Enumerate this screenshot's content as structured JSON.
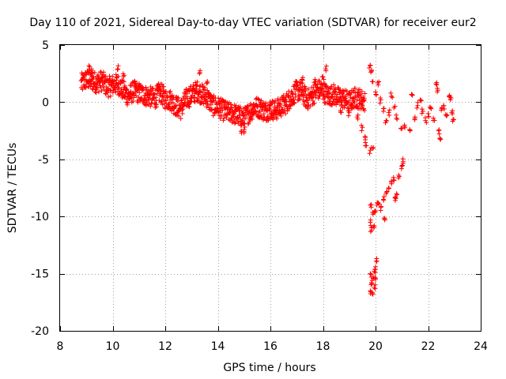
{
  "chart_data": {
    "type": "scatter",
    "title": "Day 110 of 2021, Sidereal Day-to-day VTEC variation (SDTVAR) for receiver eur2",
    "xlabel": "GPS time / hours",
    "ylabel": "SDTVAR / TECUs",
    "xlim": [
      8,
      24
    ],
    "ylim": [
      -20,
      5
    ],
    "xticks": [
      8,
      10,
      12,
      14,
      16,
      18,
      20,
      22,
      24
    ],
    "yticks": [
      5,
      0,
      -5,
      -10,
      -15,
      -20
    ],
    "grid": true,
    "marker": "+",
    "color": "#ff0000",
    "series": [
      {
        "name": "SDTVAR",
        "trend": [
          [
            8.8,
            1.6
          ],
          [
            9.0,
            2.0
          ],
          [
            9.2,
            1.9
          ],
          [
            9.4,
            1.7
          ],
          [
            9.6,
            1.9
          ],
          [
            9.8,
            1.3
          ],
          [
            10.0,
            1.5
          ],
          [
            10.2,
            1.6
          ],
          [
            10.4,
            1.0
          ],
          [
            10.6,
            0.5
          ],
          [
            10.8,
            1.0
          ],
          [
            11.0,
            0.8
          ],
          [
            11.2,
            0.6
          ],
          [
            11.4,
            0.5
          ],
          [
            11.6,
            0.3
          ],
          [
            11.8,
            0.9
          ],
          [
            12.0,
            0.3
          ],
          [
            12.2,
            0.2
          ],
          [
            12.4,
            -0.3
          ],
          [
            12.6,
            -0.6
          ],
          [
            12.8,
            0.3
          ],
          [
            13.0,
            0.6
          ],
          [
            13.2,
            1.0
          ],
          [
            13.4,
            0.7
          ],
          [
            13.6,
            0.4
          ],
          [
            13.8,
            -0.3
          ],
          [
            14.0,
            -0.4
          ],
          [
            14.2,
            -0.7
          ],
          [
            14.4,
            -0.9
          ],
          [
            14.6,
            -1.0
          ],
          [
            14.8,
            -1.2
          ],
          [
            15.0,
            -1.4
          ],
          [
            15.2,
            -0.9
          ],
          [
            15.4,
            -0.4
          ],
          [
            15.6,
            -0.5
          ],
          [
            15.8,
            -0.8
          ],
          [
            16.0,
            -0.6
          ],
          [
            16.2,
            -0.7
          ],
          [
            16.4,
            -0.4
          ],
          [
            16.6,
            -0.1
          ],
          [
            16.8,
            0.5
          ],
          [
            17.0,
            1.0
          ],
          [
            17.2,
            0.9
          ],
          [
            17.4,
            0.2
          ],
          [
            17.6,
            0.6
          ],
          [
            17.8,
            1.1
          ],
          [
            18.0,
            1.0
          ],
          [
            18.2,
            0.5
          ],
          [
            18.4,
            0.7
          ],
          [
            18.6,
            0.4
          ],
          [
            18.8,
            0.3
          ],
          [
            19.0,
            0.0
          ],
          [
            19.2,
            0.4
          ],
          [
            19.4,
            0.3
          ],
          [
            19.6,
            0.0
          ]
        ],
        "jitter": 0.9,
        "points": [
          [
            9.1,
            3.2
          ],
          [
            9.2,
            2.9
          ],
          [
            10.2,
            2.9
          ],
          [
            10.4,
            2.5
          ],
          [
            13.3,
            2.5
          ],
          [
            13.6,
            1.7
          ],
          [
            14.9,
            -2.7
          ],
          [
            15.0,
            -2.4
          ],
          [
            18.1,
            2.9
          ],
          [
            18.0,
            2.2
          ],
          [
            17.2,
            2.0
          ],
          [
            17.7,
            2.0
          ],
          [
            18.7,
            -0.9
          ],
          [
            19.0,
            -0.9
          ],
          [
            19.3,
            -1.3
          ],
          [
            19.5,
            -2.2
          ],
          [
            19.6,
            -3.0
          ],
          [
            19.65,
            -3.8
          ],
          [
            19.8,
            -4.2
          ],
          [
            19.9,
            -4.0
          ],
          [
            19.8,
            3.2
          ],
          [
            19.85,
            2.8
          ],
          [
            19.9,
            1.8
          ],
          [
            20.0,
            0.9
          ],
          [
            20.1,
            1.5
          ],
          [
            20.2,
            0.2
          ],
          [
            20.3,
            -0.8
          ],
          [
            20.4,
            -1.6
          ],
          [
            20.5,
            -0.9
          ],
          [
            20.6,
            0.5
          ],
          [
            20.7,
            -0.5
          ],
          [
            20.8,
            -1.4
          ],
          [
            21.0,
            -2.3
          ],
          [
            21.1,
            -2.0
          ],
          [
            21.3,
            -2.4
          ],
          [
            21.4,
            0.6
          ],
          [
            21.5,
            -1.3
          ],
          [
            21.6,
            -0.3
          ],
          [
            21.7,
            0.2
          ],
          [
            21.8,
            -0.8
          ],
          [
            21.9,
            -1.6
          ],
          [
            22.0,
            -1.0
          ],
          [
            22.1,
            -0.5
          ],
          [
            22.2,
            -1.4
          ],
          [
            22.3,
            1.6
          ],
          [
            22.35,
            1.2
          ],
          [
            22.4,
            -2.5
          ],
          [
            22.45,
            -3.2
          ],
          [
            22.5,
            -0.7
          ],
          [
            22.6,
            -0.3
          ],
          [
            22.7,
            -1.2
          ],
          [
            22.8,
            0.5
          ],
          [
            22.85,
            0.2
          ],
          [
            22.9,
            -0.9
          ],
          [
            22.95,
            -1.5
          ],
          [
            19.8,
            -9.0
          ],
          [
            19.8,
            -10.5
          ],
          [
            19.85,
            -11.2
          ],
          [
            19.9,
            -9.8
          ],
          [
            19.95,
            -10.8
          ],
          [
            20.0,
            -9.5
          ],
          [
            20.05,
            -9.0
          ],
          [
            20.1,
            -8.8
          ],
          [
            20.2,
            -9.2
          ],
          [
            20.3,
            -8.5
          ],
          [
            20.4,
            -8.0
          ],
          [
            20.5,
            -7.5
          ],
          [
            20.6,
            -7.0
          ],
          [
            20.7,
            -6.8
          ],
          [
            20.75,
            -8.6
          ],
          [
            20.8,
            -8.0
          ],
          [
            20.9,
            -6.5
          ],
          [
            21.0,
            -5.6
          ],
          [
            21.05,
            -5.2
          ],
          [
            20.35,
            -10.2
          ],
          [
            19.8,
            -15.0
          ],
          [
            19.8,
            -16.5
          ],
          [
            19.85,
            -15.8
          ],
          [
            19.9,
            -16.8
          ],
          [
            19.95,
            -14.8
          ],
          [
            20.0,
            -15.5
          ],
          [
            20.0,
            -14.4
          ],
          [
            20.05,
            -13.9
          ],
          [
            19.9,
            -15.3
          ],
          [
            19.95,
            -16.2
          ]
        ]
      }
    ]
  }
}
